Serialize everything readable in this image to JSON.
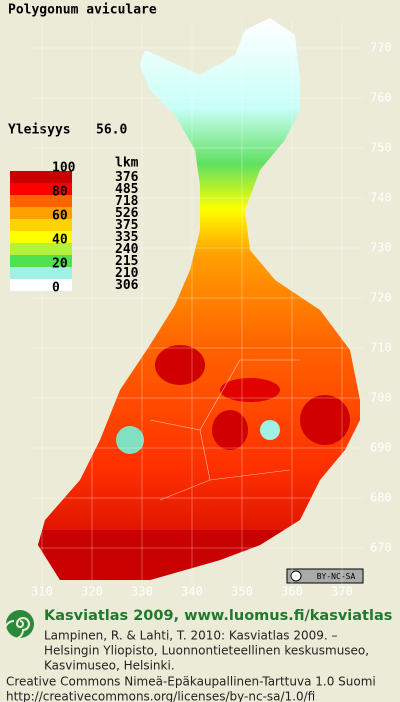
{
  "header": {
    "title": "Polygonum aviculare",
    "frequency_label": "Yleisyys",
    "frequency_value": "56.0"
  },
  "legend": {
    "title": "lkm",
    "scale_labels": [
      100,
      80,
      60,
      40,
      20,
      0
    ],
    "classes": [
      {
        "color": "#c80000",
        "count": 376
      },
      {
        "color": "#ff0000",
        "count": 485
      },
      {
        "color": "#ff6400",
        "count": 718
      },
      {
        "color": "#ffa000",
        "count": 526
      },
      {
        "color": "#ffd200",
        "count": 375
      },
      {
        "color": "#ffff00",
        "count": 335
      },
      {
        "color": "#b4f03c",
        "count": 240
      },
      {
        "color": "#50e050",
        "count": 215
      },
      {
        "color": "#a0f0e6",
        "count": 210
      },
      {
        "color": "#ffffff",
        "count": 306
      }
    ]
  },
  "map": {
    "xticks": [
      310,
      320,
      330,
      340,
      350,
      360,
      370
    ],
    "yticks": [
      770,
      760,
      750,
      740,
      730,
      720,
      710,
      700,
      690,
      680,
      670
    ],
    "license_badge": "BY-NC-SA"
  },
  "footer": {
    "site": "Kasviatlas 2009, www.luomus.fi/kasviatlas",
    "citation": [
      "Lampinen, R. & Lahti, T. 2010: Kasviatlas 2009. –",
      "Helsingin Yliopisto, Luonnontieteellinen keskusmuseo,",
      "Kasvimuseo, Helsinki."
    ],
    "license": [
      "Creative Commons Nimeä-Epäkaupallinen-Tarttuva 1.0 Suomi",
      "http://creativecommons.org/licenses/by-nc-sa/1.0/fi"
    ]
  }
}
